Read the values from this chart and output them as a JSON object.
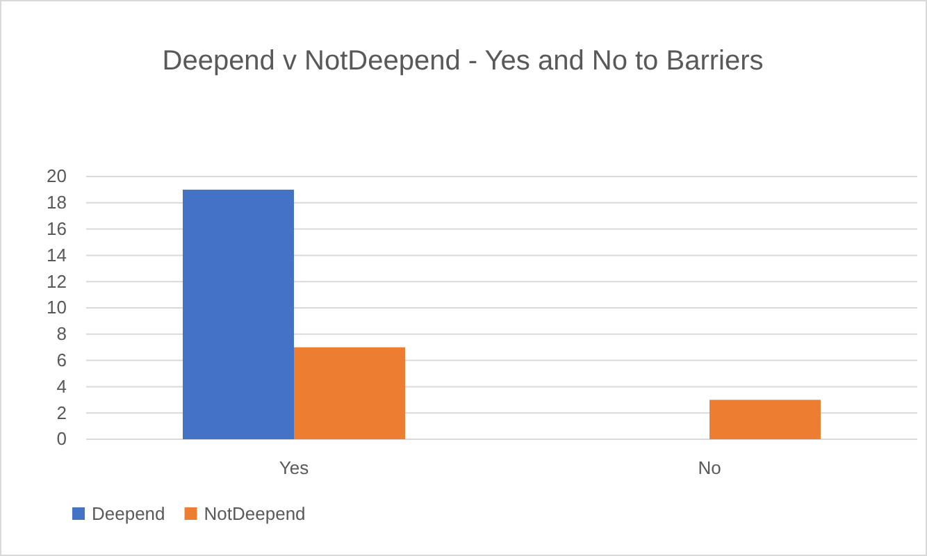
{
  "chart_data": {
    "type": "bar",
    "title": "Deepend v NotDeepend - Yes and No to Barriers",
    "categories": [
      "Yes",
      "No"
    ],
    "series": [
      {
        "name": "Deepend",
        "color": "#4472c4",
        "values": [
          19,
          0
        ]
      },
      {
        "name": "NotDeepend",
        "color": "#ed7d31",
        "values": [
          7,
          3
        ]
      }
    ],
    "ylim": [
      0,
      20
    ],
    "yticks": [
      0,
      2,
      4,
      6,
      8,
      10,
      12,
      14,
      16,
      18,
      20
    ],
    "grid": "y",
    "legend": "bottom left"
  }
}
